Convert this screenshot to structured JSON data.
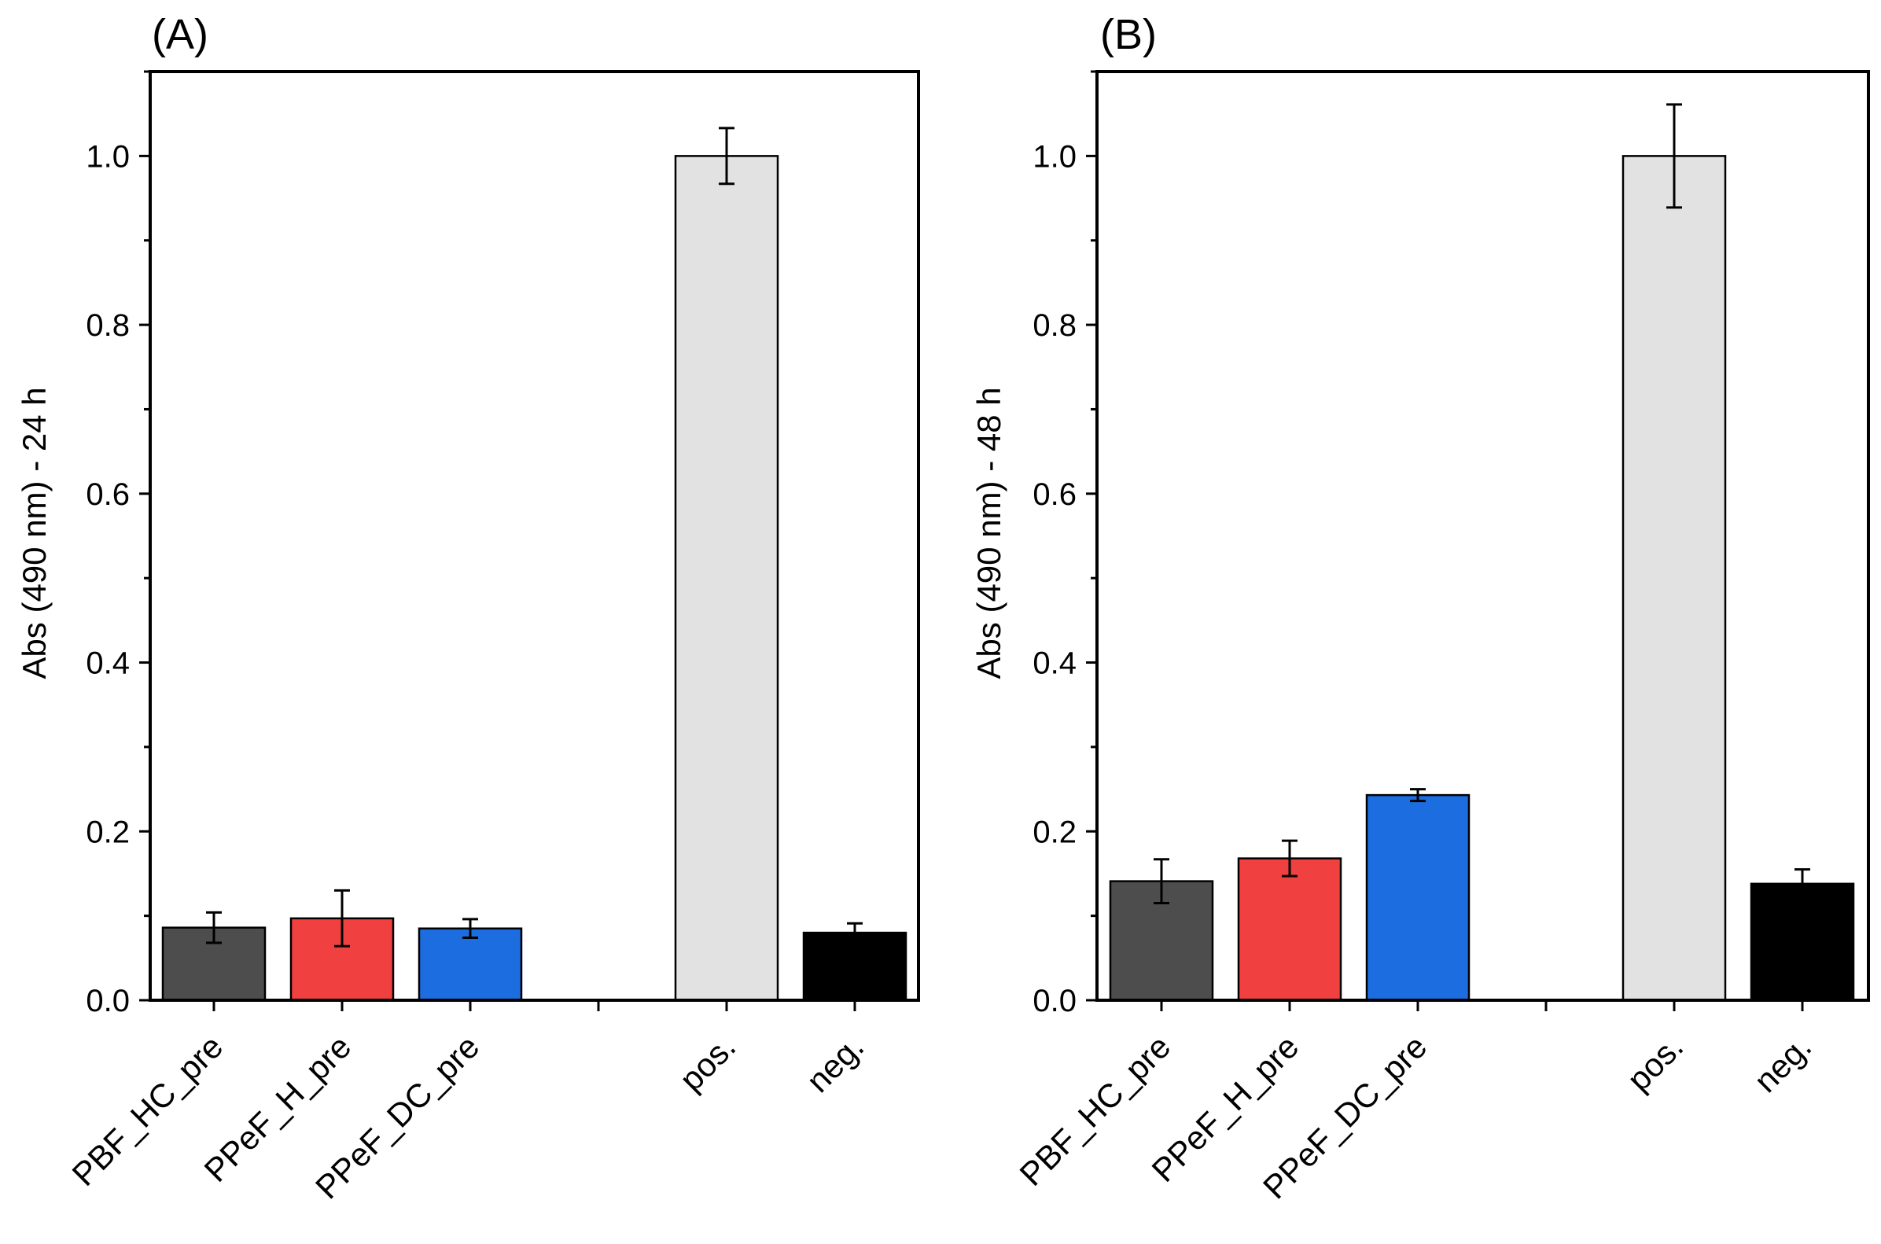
{
  "chart_data": [
    {
      "panel_label": "(A)",
      "type": "bar",
      "ylabel": "Abs (490 nm) - 24 h",
      "xlabel": "",
      "ylim": [
        0,
        1.1
      ],
      "yticks": [
        "0.0",
        "0.2",
        "0.4",
        "0.6",
        "0.8",
        "1.0"
      ],
      "ytick_values": [
        0,
        0.2,
        0.4,
        0.6,
        0.8,
        1.0
      ],
      "categories": [
        "PBF_HC_pre",
        "PPeF_H_pre",
        "PPeF_DC_pre",
        "",
        "pos.",
        "neg."
      ],
      "values": [
        0.086,
        0.097,
        0.085,
        null,
        1.0,
        0.08
      ],
      "errors": [
        0.018,
        0.033,
        0.011,
        null,
        0.033,
        0.011
      ],
      "colors": [
        "#4d4d4d",
        "#f04040",
        "#1c6ee0",
        null,
        "#e2e2e2",
        "#000000"
      ],
      "grid": false
    },
    {
      "panel_label": "(B)",
      "type": "bar",
      "ylabel": "Abs (490 nm) - 48 h",
      "xlabel": "",
      "ylim": [
        0,
        1.1
      ],
      "yticks": [
        "0.0",
        "0.2",
        "0.4",
        "0.6",
        "0.8",
        "1.0"
      ],
      "ytick_values": [
        0,
        0.2,
        0.4,
        0.6,
        0.8,
        1.0
      ],
      "categories": [
        "PBF_HC_pre",
        "PPeF_H_pre",
        "PPeF_DC_pre",
        "",
        "pos.",
        "neg."
      ],
      "values": [
        0.141,
        0.168,
        0.243,
        null,
        1.0,
        0.138
      ],
      "errors": [
        0.026,
        0.021,
        0.007,
        null,
        0.061,
        0.017
      ],
      "colors": [
        "#4d4d4d",
        "#f04040",
        "#1c6ee0",
        null,
        "#e2e2e2",
        "#000000"
      ],
      "grid": false
    }
  ]
}
